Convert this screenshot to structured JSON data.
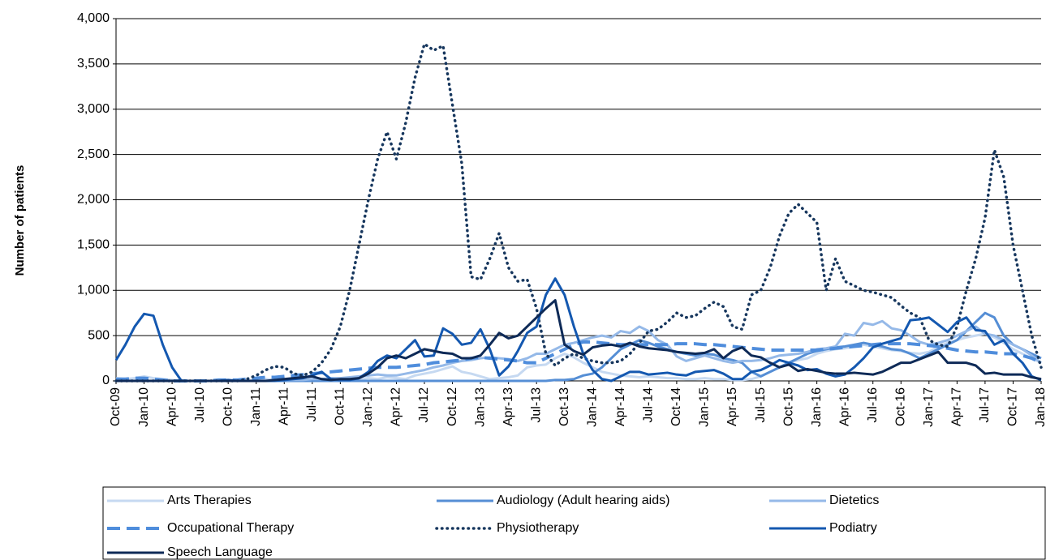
{
  "chart_data": {
    "type": "line",
    "y_label": "Number of patients",
    "ylim": [
      0,
      4000
    ],
    "yticks": [
      0,
      500,
      {
        "value": 1000,
        "label": "1,000"
      },
      {
        "value": 1500,
        "label": "1,500"
      },
      {
        "value": 2000,
        "label": "2,000"
      },
      {
        "value": 2500,
        "label": "2,500"
      },
      {
        "value": 3000,
        "label": "3,000"
      },
      {
        "value": 3500,
        "label": "3,500"
      },
      {
        "value": 4000,
        "label": "4,000"
      }
    ],
    "grid": true,
    "legend": "bottom",
    "categories": [
      "Oct-09",
      null,
      null,
      "Jan-10",
      null,
      null,
      "Apr-10",
      null,
      null,
      "Jul-10",
      null,
      null,
      "Oct-10",
      null,
      null,
      "Jan-11",
      null,
      null,
      "Apr-11",
      null,
      null,
      "Jul-11",
      null,
      null,
      "Oct-11",
      null,
      null,
      "Jan-12",
      null,
      null,
      "Apr-12",
      null,
      null,
      "Jul-12",
      null,
      null,
      "Oct-12",
      null,
      null,
      "Jan-13",
      null,
      null,
      "Apr-13",
      null,
      null,
      "Jul-13",
      null,
      null,
      "Oct-13",
      null,
      null,
      "Jan-14",
      null,
      null,
      "Apr-14",
      null,
      null,
      "Jul-14",
      null,
      null,
      "Oct-14",
      null,
      null,
      "Jan-15",
      null,
      null,
      "Apr-15",
      null,
      null,
      "Jul-15",
      null,
      null,
      "Oct-15",
      null,
      null,
      "Jan-16",
      null,
      null,
      "Apr-16",
      null,
      null,
      "Jul-16",
      null,
      null,
      "Oct-16",
      null,
      null,
      "Jan-17",
      null,
      null,
      "Apr-17",
      null,
      null,
      "Jul-17",
      null,
      null,
      "Oct-17",
      null,
      null,
      "Jan-18"
    ],
    "series": [
      {
        "name": "Arts Therapies",
        "color": "#c6d9f1",
        "line_style": "solid",
        "values": [
          30,
          20,
          30,
          50,
          30,
          20,
          10,
          0,
          0,
          0,
          0,
          0,
          0,
          0,
          0,
          10,
          20,
          10,
          0,
          0,
          0,
          0,
          0,
          0,
          10,
          10,
          20,
          30,
          20,
          40,
          30,
          20,
          60,
          80,
          100,
          130,
          160,
          100,
          80,
          50,
          20,
          30,
          40,
          60,
          150,
          170,
          180,
          250,
          300,
          260,
          200,
          150,
          100,
          80,
          60,
          50,
          40,
          50,
          40,
          30,
          30,
          20,
          20,
          30,
          20,
          20,
          10,
          10,
          20,
          50,
          100,
          150,
          200,
          230,
          250,
          300,
          330,
          350,
          360,
          380,
          400,
          380,
          360,
          340,
          330,
          310,
          300,
          320,
          380,
          420,
          450,
          480,
          500,
          520,
          480,
          420,
          350,
          300,
          250,
          200
        ]
      },
      {
        "name": "Audiology (Adult hearing aids)",
        "color": "#558ed5",
        "line_style": "solid",
        "values": [
          0,
          0,
          0,
          0,
          0,
          0,
          0,
          0,
          0,
          0,
          0,
          0,
          0,
          0,
          0,
          0,
          0,
          0,
          0,
          0,
          0,
          0,
          0,
          0,
          0,
          0,
          0,
          0,
          0,
          0,
          0,
          0,
          0,
          0,
          0,
          0,
          0,
          0,
          0,
          0,
          0,
          0,
          0,
          0,
          0,
          0,
          0,
          10,
          10,
          20,
          60,
          80,
          150,
          250,
          350,
          400,
          450,
          420,
          380,
          350,
          320,
          300,
          280,
          300,
          290,
          250,
          230,
          200,
          100,
          50,
          100,
          150,
          200,
          250,
          300,
          330,
          350,
          370,
          380,
          400,
          420,
          400,
          380,
          350,
          340,
          300,
          250,
          300,
          350,
          400,
          450,
          550,
          650,
          750,
          700,
          500,
          400,
          350,
          300,
          250
        ]
      },
      {
        "name": "Dietetics",
        "color": "#95b9e8",
        "line_style": "solid",
        "values": [
          0,
          0,
          0,
          0,
          0,
          0,
          0,
          0,
          0,
          0,
          0,
          0,
          0,
          0,
          0,
          0,
          0,
          0,
          10,
          10,
          10,
          20,
          20,
          30,
          30,
          40,
          50,
          60,
          70,
          60,
          60,
          80,
          100,
          120,
          150,
          170,
          200,
          220,
          230,
          250,
          260,
          250,
          240,
          220,
          250,
          300,
          300,
          350,
          400,
          420,
          450,
          480,
          500,
          480,
          550,
          530,
          600,
          550,
          450,
          400,
          270,
          220,
          250,
          280,
          250,
          220,
          200,
          220,
          220,
          230,
          250,
          280,
          290,
          300,
          320,
          350,
          360,
          380,
          520,
          500,
          640,
          620,
          660,
          580,
          560,
          500,
          430,
          400,
          420,
          450,
          500,
          550,
          600,
          520,
          500,
          450,
          400,
          350,
          280,
          200
        ]
      },
      {
        "name": "Occupational Therapy",
        "color": "#4f8ddc",
        "line_style": "dashed",
        "values": [
          20,
          20,
          30,
          30,
          20,
          10,
          0,
          0,
          0,
          0,
          0,
          10,
          10,
          10,
          20,
          30,
          40,
          40,
          50,
          60,
          70,
          80,
          90,
          100,
          110,
          120,
          130,
          140,
          150,
          150,
          150,
          160,
          170,
          180,
          200,
          210,
          220,
          230,
          250,
          260,
          250,
          240,
          230,
          220,
          200,
          200,
          250,
          300,
          350,
          400,
          430,
          430,
          420,
          410,
          400,
          400,
          400,
          400,
          400,
          400,
          410,
          410,
          410,
          400,
          400,
          390,
          380,
          370,
          360,
          350,
          340,
          340,
          340,
          340,
          340,
          340,
          350,
          360,
          370,
          380,
          390,
          400,
          410,
          410,
          410,
          410,
          400,
          390,
          380,
          360,
          340,
          330,
          320,
          320,
          310,
          300,
          300,
          280,
          250,
          200
        ]
      },
      {
        "name": "Physiotherapy",
        "color": "#17375e",
        "line_style": "dotted",
        "values": [
          0,
          0,
          0,
          0,
          0,
          0,
          0,
          0,
          0,
          0,
          0,
          0,
          0,
          0,
          20,
          60,
          120,
          160,
          150,
          80,
          60,
          100,
          200,
          350,
          600,
          1000,
          1500,
          2000,
          2450,
          2750,
          2450,
          2850,
          3350,
          3720,
          3650,
          3700,
          3050,
          2400,
          1150,
          1120,
          1350,
          1630,
          1250,
          1100,
          1120,
          800,
          300,
          170,
          250,
          300,
          250,
          220,
          200,
          200,
          220,
          300,
          420,
          550,
          570,
          650,
          750,
          700,
          720,
          800,
          870,
          820,
          600,
          570,
          950,
          1000,
          1250,
          1600,
          1850,
          1950,
          1850,
          1750,
          1000,
          1350,
          1100,
          1050,
          1000,
          980,
          950,
          920,
          830,
          750,
          700,
          450,
          400,
          380,
          600,
          1000,
          1350,
          1800,
          2550,
          2250,
          1500,
          1000,
          500,
          150
        ]
      },
      {
        "name": "Podiatry",
        "color": "#1458b0",
        "line_style": "solid",
        "values": [
          230,
          400,
          600,
          740,
          720,
          400,
          150,
          0,
          0,
          0,
          0,
          0,
          10,
          0,
          0,
          0,
          0,
          0,
          10,
          20,
          30,
          60,
          100,
          20,
          10,
          10,
          30,
          100,
          220,
          280,
          250,
          350,
          450,
          270,
          280,
          580,
          520,
          400,
          420,
          570,
          350,
          60,
          160,
          330,
          530,
          600,
          950,
          1130,
          950,
          600,
          300,
          120,
          20,
          0,
          50,
          100,
          100,
          70,
          80,
          90,
          70,
          60,
          100,
          110,
          120,
          80,
          20,
          20,
          100,
          120,
          170,
          230,
          200,
          170,
          120,
          130,
          80,
          50,
          70,
          150,
          250,
          370,
          410,
          440,
          470,
          670,
          680,
          700,
          620,
          540,
          650,
          700,
          560,
          550,
          400,
          450,
          300,
          200,
          50,
          10
        ]
      },
      {
        "name": "Speech Language",
        "color": "#0e2a57",
        "line_style": "solid",
        "values": [
          0,
          0,
          0,
          0,
          0,
          0,
          0,
          0,
          0,
          0,
          0,
          0,
          0,
          0,
          0,
          0,
          0,
          10,
          20,
          30,
          40,
          50,
          20,
          10,
          20,
          20,
          30,
          80,
          150,
          250,
          280,
          250,
          300,
          350,
          330,
          310,
          300,
          250,
          250,
          280,
          400,
          530,
          470,
          500,
          600,
          700,
          800,
          890,
          400,
          330,
          290,
          370,
          390,
          400,
          380,
          420,
          380,
          360,
          350,
          340,
          320,
          310,
          300,
          310,
          350,
          250,
          330,
          370,
          280,
          260,
          200,
          150,
          180,
          110,
          130,
          110,
          90,
          80,
          80,
          90,
          80,
          70,
          100,
          150,
          200,
          200,
          240,
          280,
          320,
          200,
          200,
          200,
          170,
          80,
          90,
          70,
          70,
          70,
          40,
          20
        ]
      }
    ]
  }
}
